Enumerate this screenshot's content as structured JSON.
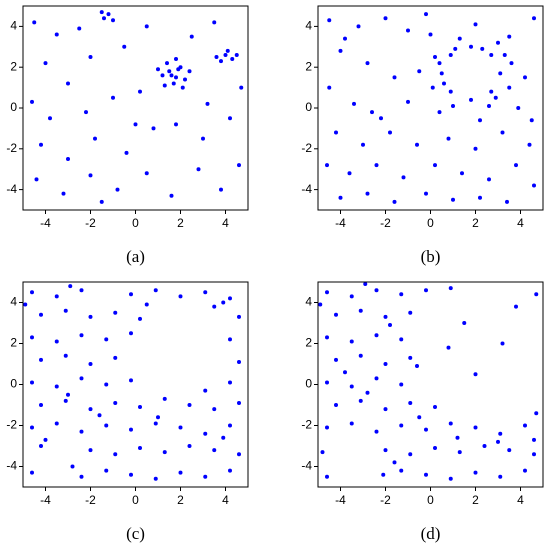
{
  "chart_data": [
    {
      "type": "scatter",
      "label": "(a)",
      "color": "#0000ff",
      "xlim": [
        -5,
        5
      ],
      "ylim": [
        -5,
        5
      ],
      "xticks": [
        -4,
        -2,
        0,
        2,
        4
      ],
      "yticks": [
        -4,
        -2,
        0,
        2,
        4
      ],
      "x": [
        1.5,
        1.8,
        2.0,
        1.2,
        1.7,
        2.2,
        1.4,
        1.9,
        1.6,
        2.4,
        1.0,
        1.8,
        1.3,
        2.1,
        3.6,
        4.0,
        4.3,
        3.8,
        4.1,
        4.5,
        -1.4,
        -1.2,
        -1.0,
        -1.5,
        -4.5,
        -3.5,
        -2.5,
        -4.0,
        -3.0,
        -2.0,
        -0.5,
        0.5,
        -4.6,
        -3.8,
        -2.2,
        -1.0,
        0.2,
        -4.2,
        -3.0,
        -1.8,
        -0.4,
        0.8,
        1.8,
        3.0,
        4.2,
        -4.4,
        -3.2,
        -2.0,
        -0.8,
        0.5,
        1.6,
        2.8,
        3.8,
        4.6,
        3.2,
        2.5,
        3.5,
        4.7,
        -1.5,
        0.0
      ],
      "y": [
        1.8,
        1.5,
        2.0,
        1.6,
        1.2,
        1.4,
        2.2,
        1.9,
        1.6,
        1.8,
        1.9,
        2.4,
        1.1,
        1.0,
        2.5,
        2.6,
        2.4,
        2.3,
        2.8,
        2.6,
        4.4,
        4.6,
        4.3,
        4.7,
        4.2,
        3.6,
        3.9,
        2.2,
        1.2,
        2.5,
        3.0,
        4.0,
        0.3,
        -0.5,
        -0.2,
        0.5,
        0.8,
        -1.8,
        -2.5,
        -1.5,
        -2.2,
        -1.0,
        -0.8,
        -1.5,
        -0.5,
        -3.5,
        -4.2,
        -3.3,
        -4.0,
        -3.2,
        -4.3,
        -3.0,
        -4.0,
        -2.8,
        0.2,
        3.5,
        4.2,
        1.0,
        -4.6,
        -0.8
      ]
    },
    {
      "type": "scatter",
      "label": "(b)",
      "color": "#0000ff",
      "xlim": [
        -5,
        5
      ],
      "ylim": [
        -5,
        5
      ],
      "xticks": [
        -4,
        -2,
        0,
        2,
        4
      ],
      "yticks": [
        -4,
        -2,
        0,
        2,
        4
      ],
      "x": [
        3.1,
        2.7,
        1.8,
        0.9,
        0.5,
        0.9,
        1.8,
        2.7,
        3.6,
        3.0,
        1.3,
        0.2,
        0.1,
        1.0,
        2.6,
        3.5,
        4.2,
        3.5,
        2.0,
        0.0,
        -0.5,
        0.4,
        2.2,
        3.9,
        -4.5,
        -3.2,
        -2.0,
        -1.0,
        -4.0,
        -2.8,
        -1.6,
        -4.5,
        -3.4,
        -2.2,
        -1.0,
        -4.2,
        -3.0,
        -1.8,
        -0.6,
        0.8,
        2.0,
        3.2,
        4.4,
        -4.6,
        -3.6,
        -2.4,
        -1.2,
        0.2,
        1.4,
        2.6,
        3.8,
        4.6,
        -4.0,
        -2.8,
        -1.6,
        -0.2,
        1.0,
        2.2,
        3.4,
        4.5,
        -0.2,
        4.6,
        -3.8,
        -2.6,
        2.3,
        1.1,
        0.6,
        2.9,
        3.3,
        0.4
      ],
      "y": [
        1.7,
        2.6,
        3.0,
        2.6,
        1.7,
        0.8,
        0.4,
        0.8,
        2.2,
        3.2,
        3.4,
        2.5,
        1.0,
        0.1,
        0.1,
        1.0,
        1.5,
        3.5,
        4.1,
        3.6,
        1.8,
        -0.2,
        -0.6,
        0.0,
        4.3,
        4.0,
        4.4,
        3.8,
        2.8,
        2.2,
        1.5,
        1.0,
        0.2,
        -0.5,
        0.3,
        -1.2,
        -1.8,
        -1.2,
        -1.8,
        -1.5,
        -2.0,
        -1.2,
        -1.8,
        -2.8,
        -3.2,
        -2.8,
        -3.4,
        -2.8,
        -3.2,
        -3.5,
        -2.8,
        -3.8,
        -4.4,
        -4.2,
        -4.6,
        -4.2,
        -4.5,
        -4.4,
        -4.6,
        -0.6,
        4.6,
        4.4,
        3.4,
        -0.2,
        2.9,
        2.9,
        1.2,
        0.5,
        2.6,
        2.2
      ]
    },
    {
      "type": "scatter",
      "label": "(c)",
      "color": "#0000ff",
      "xlim": [
        -5,
        5
      ],
      "ylim": [
        -5,
        5
      ],
      "xticks": [
        -4,
        -2,
        0,
        2,
        4
      ],
      "yticks": [
        -4,
        -2,
        0,
        2,
        4
      ],
      "x": [
        -4.6,
        -3.5,
        -2.4,
        -0.2,
        0.9,
        2.0,
        3.1,
        4.2,
        -4.2,
        -3.1,
        -2.0,
        -0.9,
        0.2,
        3.5,
        4.6,
        -4.6,
        -3.5,
        -2.4,
        -1.3,
        -0.2,
        4.2,
        -4.2,
        -3.1,
        -2.0,
        -0.9,
        4.6,
        -4.6,
        -3.5,
        -2.4,
        -1.3,
        -0.2,
        3.1,
        4.2,
        -4.2,
        -3.1,
        -2.0,
        -0.9,
        0.2,
        1.3,
        2.4,
        3.5,
        4.6,
        -4.6,
        -3.5,
        -2.4,
        -1.3,
        -0.2,
        0.9,
        2.0,
        3.1,
        4.2,
        -4.2,
        -2.0,
        -0.9,
        0.2,
        1.3,
        2.4,
        3.5,
        4.6,
        -4.6,
        -2.4,
        -1.3,
        -0.2,
        0.9,
        2.0,
        3.1,
        4.2,
        -4.9,
        -2.9,
        0.5,
        3.9,
        -3.0,
        -1.6,
        1.0,
        3.9,
        -4.0,
        -2.8
      ],
      "y": [
        4.5,
        4.3,
        4.6,
        4.4,
        4.6,
        4.3,
        4.5,
        4.2,
        3.4,
        3.6,
        3.3,
        3.5,
        3.2,
        3.8,
        3.3,
        2.3,
        2.1,
        2.4,
        2.2,
        2.5,
        2.2,
        1.2,
        1.4,
        1.0,
        1.3,
        1.1,
        0.1,
        -0.1,
        0.3,
        0.0,
        0.2,
        -0.3,
        0.1,
        -1.0,
        -0.8,
        -1.2,
        -0.9,
        -1.1,
        -0.7,
        -1.0,
        -1.2,
        -0.9,
        -2.1,
        -1.9,
        -2.3,
        -2.0,
        -2.2,
        -1.9,
        -2.1,
        -2.4,
        -2.0,
        -3.0,
        -3.2,
        -3.4,
        -3.1,
        -3.3,
        -3.0,
        -3.2,
        -3.4,
        -4.3,
        -4.5,
        -4.2,
        -4.4,
        -4.6,
        -4.3,
        -4.5,
        -4.2,
        3.9,
        4.8,
        3.9,
        4.0,
        -0.5,
        -1.5,
        -1.6,
        -2.6,
        -2.7,
        -4.0
      ]
    },
    {
      "type": "scatter",
      "label": "(d)",
      "color": "#0000ff",
      "xlim": [
        -5,
        5
      ],
      "ylim": [
        -5,
        5
      ],
      "xticks": [
        -4,
        -2,
        0,
        2,
        4
      ],
      "yticks": [
        -4,
        -2,
        0,
        2,
        4
      ],
      "x": [
        -4.6,
        -3.5,
        -2.4,
        -1.3,
        -0.2,
        0.9,
        4.7,
        -4.2,
        -3.1,
        -2.0,
        -0.9,
        -4.6,
        -3.5,
        -2.4,
        -1.3,
        -4.2,
        -3.1,
        -2.0,
        -0.9,
        -4.6,
        -3.5,
        -2.4,
        -1.3,
        -4.2,
        -3.1,
        -2.0,
        -0.9,
        0.2,
        4.7,
        -4.6,
        -3.5,
        -2.4,
        -1.3,
        -0.2,
        0.9,
        2.0,
        3.1,
        4.2,
        -2.0,
        -0.9,
        0.2,
        1.3,
        2.4,
        3.5,
        4.6,
        -4.6,
        -2.1,
        -1.3,
        -0.2,
        0.9,
        2.0,
        3.1,
        4.2,
        1.5,
        3.2,
        2.0,
        0.8,
        3.8,
        -4.9,
        -3.8,
        -2.8,
        -1.8,
        -0.5,
        1.2,
        3.0,
        4.6,
        -4.8,
        -1.6,
        -2.9,
        -0.6
      ],
      "y": [
        4.5,
        4.3,
        4.6,
        4.4,
        4.6,
        4.7,
        4.4,
        3.4,
        3.6,
        3.3,
        3.5,
        2.3,
        2.1,
        2.4,
        2.2,
        1.2,
        1.4,
        1.0,
        1.3,
        0.1,
        -0.1,
        0.3,
        0.0,
        -1.0,
        -0.8,
        -1.2,
        -0.9,
        -1.1,
        -1.4,
        -2.1,
        -1.9,
        -2.3,
        -2.0,
        -2.2,
        -1.9,
        -2.1,
        -2.4,
        -2.0,
        -3.2,
        -3.4,
        -3.1,
        -3.3,
        -3.0,
        -3.2,
        -3.4,
        -4.5,
        -4.4,
        -4.2,
        -4.4,
        -4.6,
        -4.3,
        -4.5,
        -4.2,
        3.0,
        2.0,
        0.5,
        1.8,
        3.8,
        3.9,
        0.6,
        -0.4,
        2.9,
        -1.6,
        -2.6,
        -2.8,
        -2.7,
        -3.3,
        -3.8,
        4.9,
        0.9
      ]
    }
  ]
}
